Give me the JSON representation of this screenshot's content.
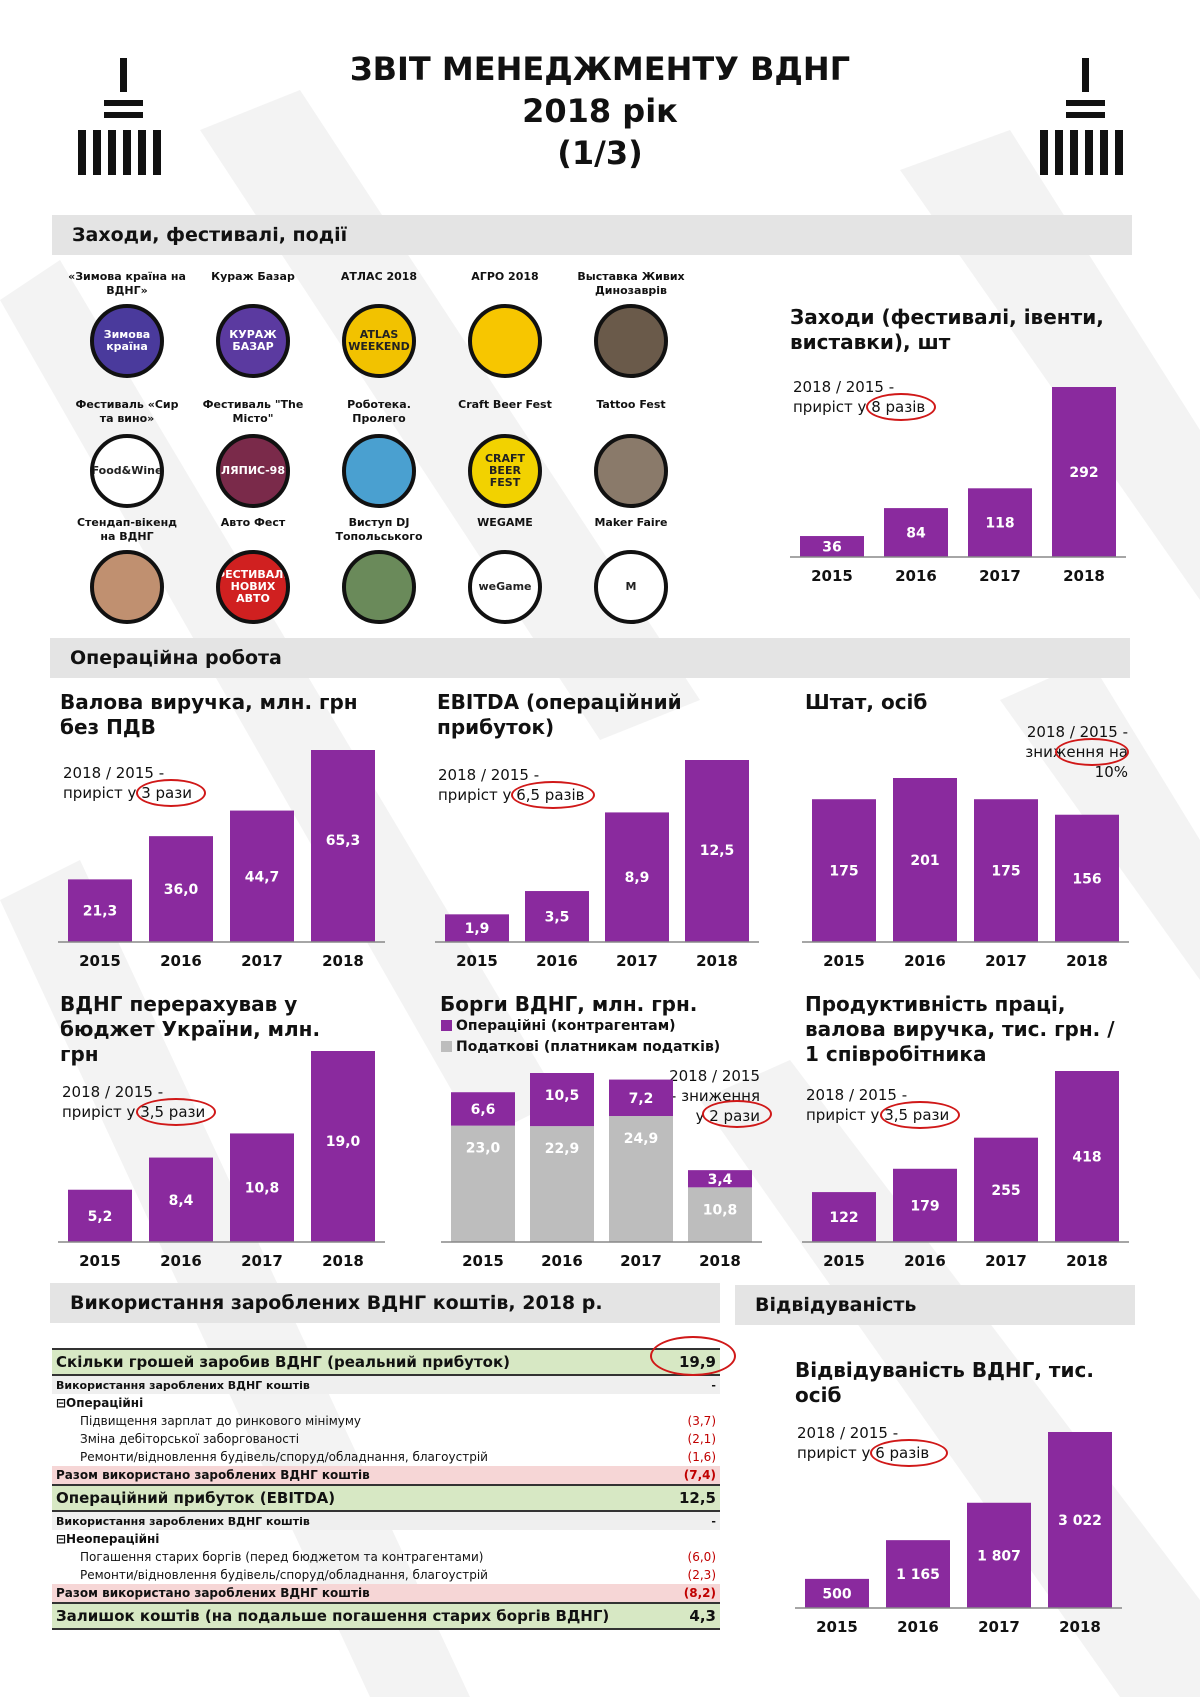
{
  "header": {
    "title_line1": "ЗВІТ МЕНЕДЖМЕНТУ ВДНГ",
    "title_line2": "2018 рік",
    "title_line3": "(1/3)"
  },
  "colors": {
    "accent": "#8a2a9e",
    "gray": "#bdbdbd",
    "highlight": "#d01818"
  },
  "sections": {
    "events": "Заходи, фестивалі, події",
    "operations": "Операційна робота",
    "funds": "Використання зароблених ВДНГ коштів, 2018 р.",
    "attendance": "Відвідуваність"
  },
  "events": [
    {
      "label": "«Зимова країна на ВДНГ»",
      "icon_text": "Зимова країна",
      "bg": "#4a3a9c"
    },
    {
      "label": "Кураж Базар",
      "icon_text": "КУРАЖ БАЗАР",
      "bg": "#5b3aa0"
    },
    {
      "label": "АТЛАС 2018",
      "icon_text": "ATLAS WEEKEND",
      "bg": "#f2c200"
    },
    {
      "label": "АГРО 2018",
      "icon_text": "",
      "bg": "#f7c600"
    },
    {
      "label": "Выставка Живих Динозаврів",
      "icon_text": "",
      "bg": "#6a5a4a"
    },
    {
      "label": "Фестиваль «Сир та вино»",
      "icon_text": "Food&Wine",
      "bg": "#ffffff"
    },
    {
      "label": "Фестиваль \"The Місто\"",
      "icon_text": "ЛЯПИС-98",
      "bg": "#7a2a4a"
    },
    {
      "label": "Роботека. Пролего",
      "icon_text": "",
      "bg": "#4aa0d0"
    },
    {
      "label": "Craft Beer Fest",
      "icon_text": "CRAFT BEER FEST",
      "bg": "#f2d200"
    },
    {
      "label": "Tattoo Fest",
      "icon_text": "",
      "bg": "#8a7a6a"
    },
    {
      "label": "Стендап-вікенд на ВДНГ",
      "icon_text": "",
      "bg": "#c09070"
    },
    {
      "label": "Авто Фест",
      "icon_text": "ФЕСТИВАЛЬ НОВИХ АВТО",
      "bg": "#d02020"
    },
    {
      "label": "Виступ DJ Топольського",
      "icon_text": "",
      "bg": "#6a8a5a"
    },
    {
      "label": "WEGAME",
      "icon_text": "weGame",
      "bg": "#ffffff"
    },
    {
      "label": "Maker Faire",
      "icon_text": "M",
      "bg": "#ffffff"
    }
  ],
  "chart_data": [
    {
      "id": "events",
      "type": "bar",
      "title": "Заходи (фестивалі, івенти, виставки), шт",
      "note": "2018 / 2015 - приріст у 8 разів",
      "note_pre": "2018 / 2015 -",
      "note_mid": "приріст у",
      "note_hl": "8 разів",
      "categories": [
        "2015",
        "2016",
        "2017",
        "2018"
      ],
      "values": [
        36,
        84,
        118,
        292
      ],
      "labels": [
        "36",
        "84",
        "118",
        "292"
      ],
      "ylim": [
        0,
        292
      ]
    },
    {
      "id": "revenue",
      "type": "bar",
      "title": "Валова виручка, млн. грн без ПДВ",
      "note_pre": "2018 / 2015 -",
      "note_mid": "приріст у",
      "note_hl": "3 рази",
      "categories": [
        "2015",
        "2016",
        "2017",
        "2018"
      ],
      "values": [
        21.3,
        36.0,
        44.7,
        65.3
      ],
      "labels": [
        "21,3",
        "36,0",
        "44,7",
        "65,3"
      ],
      "ylim": [
        0,
        65.3
      ]
    },
    {
      "id": "ebitda",
      "type": "bar",
      "title": "EBITDA (операційний прибуток)",
      "note_pre": "2018 / 2015 -",
      "note_mid": "приріст у",
      "note_hl": "6,5 разів",
      "categories": [
        "2015",
        "2016",
        "2017",
        "2018"
      ],
      "values": [
        1.9,
        3.5,
        8.9,
        12.5
      ],
      "labels": [
        "1,9",
        "3,5",
        "8,9",
        "12,5"
      ],
      "ylim": [
        0,
        12.5
      ]
    },
    {
      "id": "staff",
      "type": "bar",
      "title": "Штат, осіб",
      "note_pre": "2018 / 2015 -",
      "note_mid": "зниження",
      "note_hl": "на 10%",
      "categories": [
        "2015",
        "2016",
        "2017",
        "2018"
      ],
      "values": [
        175,
        201,
        175,
        156
      ],
      "labels": [
        "175",
        "201",
        "175",
        "156"
      ],
      "ylim": [
        0,
        201
      ]
    },
    {
      "id": "budget",
      "type": "bar",
      "title": "ВДНГ перерахував у бюджет України, млн. грн",
      "note_pre": "2018 / 2015 -",
      "note_mid": "приріст у",
      "note_hl": "3,5 рази",
      "categories": [
        "2015",
        "2016",
        "2017",
        "2018"
      ],
      "values": [
        5.2,
        8.4,
        10.8,
        19.0
      ],
      "labels": [
        "5,2",
        "8,4",
        "10,8",
        "19,0"
      ],
      "ylim": [
        0,
        19.0
      ]
    },
    {
      "id": "debts",
      "type": "bar",
      "stacked": true,
      "title": "Борги ВДНГ, млн. грн.",
      "note_pre": "2018 / 2015",
      "note_mid": "- зниження у",
      "note_hl": "2 рази",
      "categories": [
        "2015",
        "2016",
        "2017",
        "2018"
      ],
      "series": [
        {
          "name": "Податкові (платникам податків)",
          "values": [
            23.0,
            22.9,
            24.9,
            10.8
          ],
          "labels": [
            "23,0",
            "22,9",
            "24,9",
            "10,8"
          ]
        },
        {
          "name": "Операційні (контрагентам)",
          "values": [
            6.6,
            10.5,
            7.2,
            3.4
          ],
          "labels": [
            "6,6",
            "10,5",
            "7,2",
            "3,4"
          ]
        }
      ],
      "ylim": [
        0,
        33.4
      ]
    },
    {
      "id": "productivity",
      "type": "bar",
      "title": "Продуктивність праці, валова виручка, тис. грн. / 1 співробітника",
      "note_pre": "2018 / 2015 -",
      "note_mid": "приріст у",
      "note_hl": "3,5 рази",
      "categories": [
        "2015",
        "2016",
        "2017",
        "2018"
      ],
      "values": [
        122,
        179,
        255,
        418
      ],
      "labels": [
        "122",
        "179",
        "255",
        "418"
      ],
      "ylim": [
        0,
        418
      ]
    },
    {
      "id": "attendance",
      "type": "bar",
      "title": "Відвідуваність ВДНГ, тис. осіб",
      "note_pre": "2018 / 2015 -",
      "note_mid": "приріст у",
      "note_hl": "6 разів",
      "categories": [
        "2015",
        "2016",
        "2017",
        "2018"
      ],
      "values": [
        500,
        1165,
        1807,
        3022
      ],
      "labels": [
        "500",
        "1 165",
        "1 807",
        "3 022"
      ],
      "ylim": [
        0,
        3022
      ]
    }
  ],
  "funds_table": [
    {
      "kind": "big",
      "label": "Скільки грошей заробив ВДНГ (реальний прибуток)",
      "value": "19,9"
    },
    {
      "kind": "sub",
      "label": "Використання зароблених ВДНГ коштів",
      "value": "-"
    },
    {
      "kind": "grp",
      "label": "⊟Операційні",
      "value": ""
    },
    {
      "kind": "item",
      "label": "Підвищення зарплат до ринкового мінімуму",
      "value": "(3,7)"
    },
    {
      "kind": "item",
      "label": "Зміна дебіторської заборгованості",
      "value": "(2,1)"
    },
    {
      "kind": "item",
      "label": "Ремонти/відновлення будівель/споруд/обладнання, благоустрій",
      "value": "(1,6)"
    },
    {
      "kind": "sum",
      "label": "Разом використано зароблених ВДНГ коштів",
      "value": "(7,4)"
    },
    {
      "kind": "big",
      "label": "Операційний прибуток (EBITDA)",
      "value": "12,5"
    },
    {
      "kind": "sub",
      "label": "Використання зароблених ВДНГ коштів",
      "value": "-"
    },
    {
      "kind": "grp",
      "label": "⊟Неопераційні",
      "value": ""
    },
    {
      "kind": "item",
      "label": "Погашення старих боргів (перед бюджетом та контрагентами)",
      "value": "(6,0)"
    },
    {
      "kind": "item",
      "label": "Ремонти/відновлення будівель/споруд/обладнання, благоустрій",
      "value": "(2,3)"
    },
    {
      "kind": "sum",
      "label": "Разом використано зароблених ВДНГ коштів",
      "value": "(8,2)"
    },
    {
      "kind": "big",
      "label": "Залишок коштів (на подальше погашення старих боргів ВДНГ)",
      "value": "4,3"
    }
  ]
}
